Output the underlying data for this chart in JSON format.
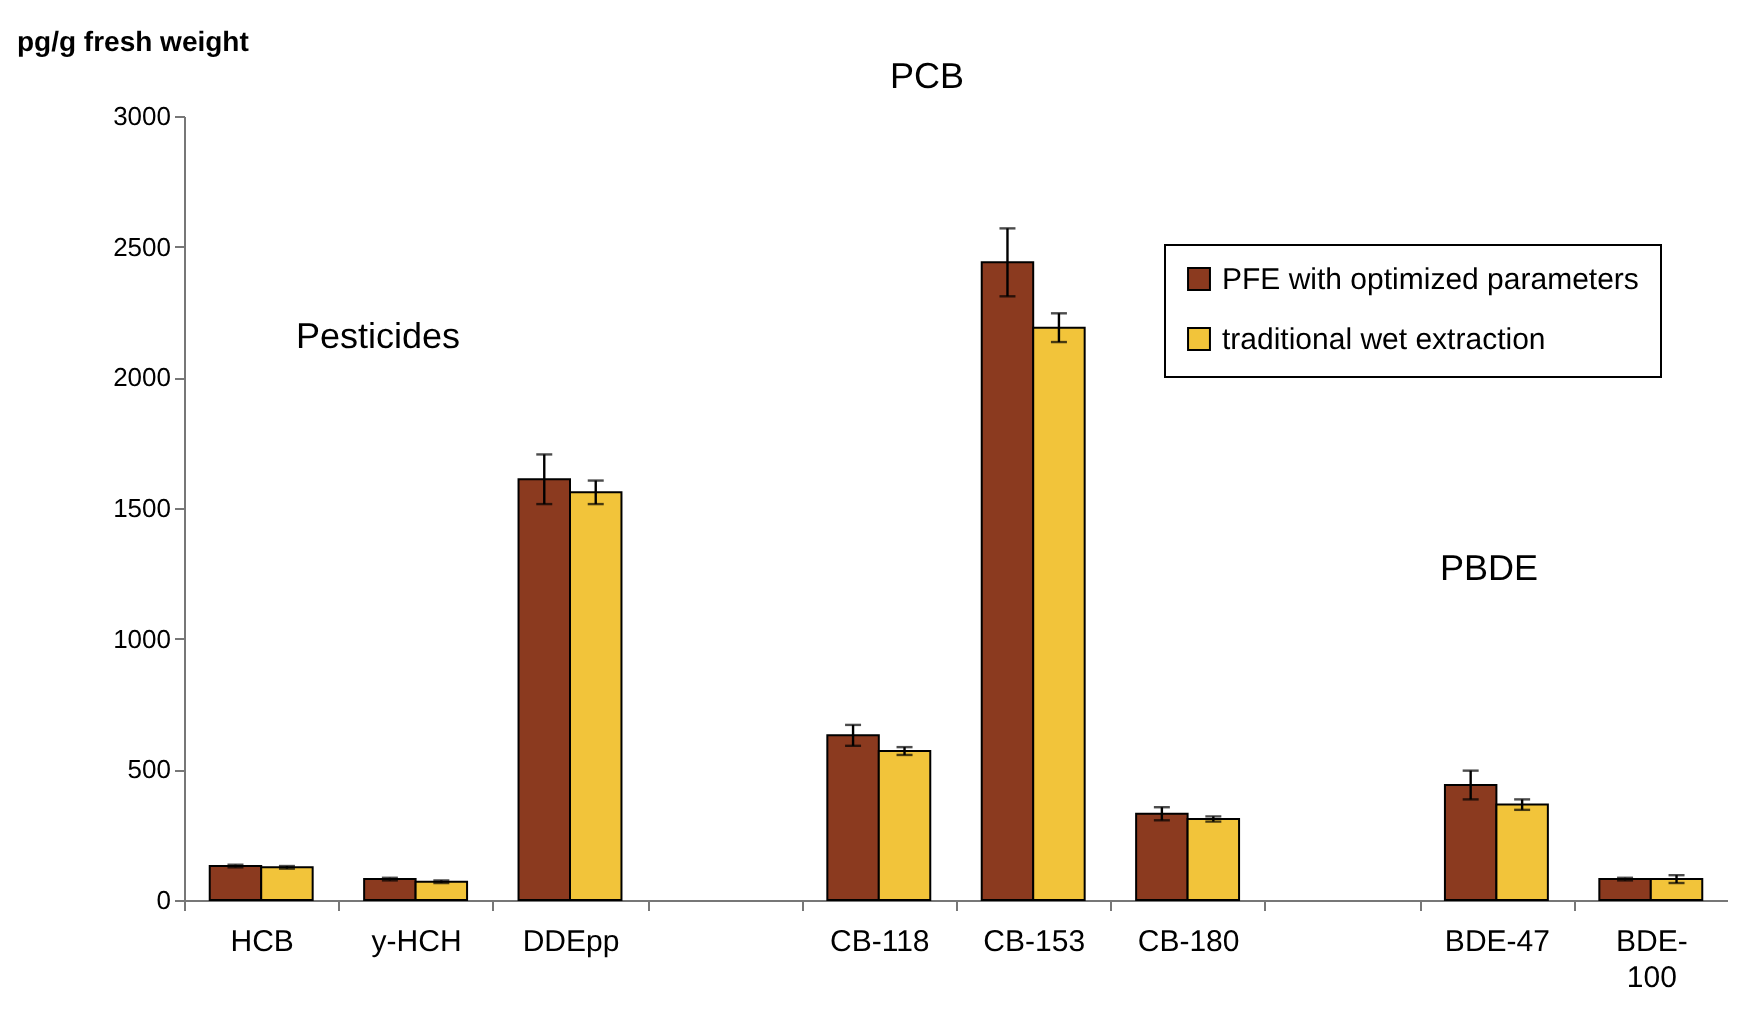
{
  "chart_data": {
    "type": "bar",
    "ylabel": "pg/g fresh weight",
    "categories": [
      "HCB",
      "y-HCH",
      "DDEpp",
      null,
      "CB-118",
      "CB-153",
      "CB-180",
      null,
      "BDE-47",
      "BDE-100"
    ],
    "series": [
      {
        "name": "PFE with optimized parameters",
        "color": "#8b3a1f",
        "values": [
          130,
          80,
          1610,
          null,
          630,
          2440,
          330,
          null,
          440,
          80
        ],
        "errors": [
          5,
          5,
          95,
          null,
          40,
          130,
          25,
          null,
          55,
          5
        ]
      },
      {
        "name": "traditional wet extraction",
        "color": "#f2c43a",
        "values": [
          125,
          70,
          1560,
          null,
          570,
          2190,
          310,
          null,
          365,
          80
        ],
        "errors": [
          5,
          5,
          45,
          null,
          15,
          55,
          10,
          null,
          20,
          15
        ]
      }
    ],
    "ylim": [
      0,
      3000
    ],
    "yticks": [
      0,
      500,
      1000,
      1500,
      2000,
      2500,
      3000
    ],
    "grid": false,
    "legend": "top right",
    "annotations": [
      "Pesticides",
      "PCB",
      "PBDE"
    ]
  }
}
